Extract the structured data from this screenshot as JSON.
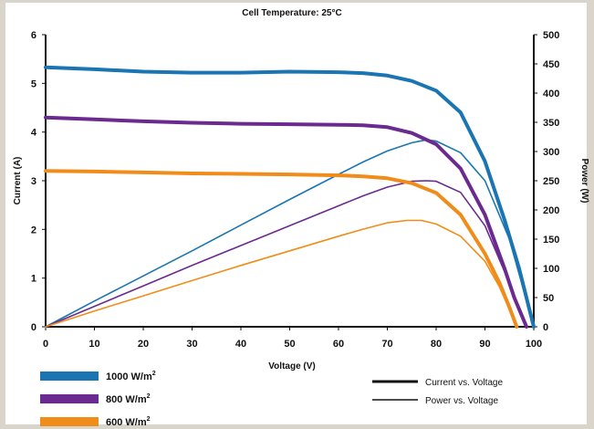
{
  "chart_data": {
    "type": "line",
    "title": "Cell Temperature: 25°C",
    "xlabel": "Voltage (V)",
    "ylabel": "Current (A)",
    "y2label": "Power (W)",
    "xlim": [
      0,
      100
    ],
    "ylim": [
      0,
      6
    ],
    "y2lim": [
      0,
      500
    ],
    "xticks": [
      "0",
      "10",
      "20",
      "30",
      "40",
      "50",
      "60",
      "70",
      "80",
      "90",
      "100"
    ],
    "yticks": [
      "0",
      "1",
      "2",
      "3",
      "4",
      "5",
      "6"
    ],
    "y2ticks": [
      "0",
      "50",
      "100",
      "150",
      "200",
      "250",
      "300",
      "350",
      "400",
      "450",
      "500"
    ],
    "grid": false,
    "legend": {
      "irradiance": [
        {
          "label": "1000 W/m",
          "sup": "2",
          "color": "#1a75b2"
        },
        {
          "label": "800 W/m",
          "sup": "2",
          "color": "#6a2a8f"
        },
        {
          "label": "600 W/m",
          "sup": "2",
          "color": "#f08c1a"
        }
      ],
      "styles": [
        {
          "label": "Current vs. Voltage",
          "style": "thick"
        },
        {
          "label": "Power vs. Voltage",
          "style": "thin"
        }
      ]
    },
    "series": [
      {
        "name": "1000 W/m² Current vs. Voltage",
        "axis": "left",
        "style": "thick",
        "color": "#1a75b2",
        "points": [
          [
            0,
            5.33
          ],
          [
            10,
            5.29
          ],
          [
            20,
            5.24
          ],
          [
            30,
            5.22
          ],
          [
            40,
            5.22
          ],
          [
            50,
            5.24
          ],
          [
            60,
            5.23
          ],
          [
            65,
            5.21
          ],
          [
            70,
            5.16
          ],
          [
            75,
            5.05
          ],
          [
            80,
            4.85
          ],
          [
            85,
            4.4
          ],
          [
            90,
            3.4
          ],
          [
            94,
            2.2
          ],
          [
            97,
            1.2
          ],
          [
            100,
            0
          ]
        ]
      },
      {
        "name": "800 W/m² Current vs. Voltage",
        "axis": "left",
        "style": "thick",
        "color": "#6a2a8f",
        "points": [
          [
            0,
            4.3
          ],
          [
            10,
            4.26
          ],
          [
            20,
            4.22
          ],
          [
            30,
            4.19
          ],
          [
            40,
            4.17
          ],
          [
            50,
            4.16
          ],
          [
            60,
            4.15
          ],
          [
            65,
            4.14
          ],
          [
            70,
            4.1
          ],
          [
            75,
            3.98
          ],
          [
            80,
            3.75
          ],
          [
            85,
            3.25
          ],
          [
            90,
            2.3
          ],
          [
            94,
            1.2
          ],
          [
            96,
            0.6
          ],
          [
            98.5,
            0
          ]
        ]
      },
      {
        "name": "600 W/m² Current vs. Voltage",
        "axis": "left",
        "style": "thick",
        "color": "#f08c1a",
        "points": [
          [
            0,
            3.2
          ],
          [
            10,
            3.19
          ],
          [
            20,
            3.17
          ],
          [
            30,
            3.15
          ],
          [
            40,
            3.14
          ],
          [
            50,
            3.13
          ],
          [
            60,
            3.11
          ],
          [
            65,
            3.09
          ],
          [
            70,
            3.05
          ],
          [
            75,
            2.95
          ],
          [
            80,
            2.75
          ],
          [
            85,
            2.3
          ],
          [
            90,
            1.5
          ],
          [
            93,
            0.9
          ],
          [
            95,
            0.4
          ],
          [
            96.5,
            0
          ]
        ]
      },
      {
        "name": "1000 W/m² Power vs. Voltage",
        "axis": "right",
        "style": "thin",
        "color": "#1a75b2",
        "points": [
          [
            0,
            0
          ],
          [
            10,
            44
          ],
          [
            20,
            87
          ],
          [
            30,
            130
          ],
          [
            40,
            174
          ],
          [
            50,
            218
          ],
          [
            60,
            261
          ],
          [
            65,
            282
          ],
          [
            70,
            301
          ],
          [
            75,
            315
          ],
          [
            78,
            320
          ],
          [
            80,
            318
          ],
          [
            85,
            298
          ],
          [
            90,
            250
          ],
          [
            95,
            150
          ],
          [
            100,
            0
          ]
        ]
      },
      {
        "name": "800 W/m² Power vs. Voltage",
        "axis": "right",
        "style": "thin",
        "color": "#6a2a8f",
        "points": [
          [
            0,
            0
          ],
          [
            10,
            35
          ],
          [
            20,
            70
          ],
          [
            30,
            105
          ],
          [
            40,
            139
          ],
          [
            50,
            173
          ],
          [
            60,
            207
          ],
          [
            65,
            224
          ],
          [
            70,
            239
          ],
          [
            75,
            249
          ],
          [
            78,
            250
          ],
          [
            80,
            249
          ],
          [
            85,
            230
          ],
          [
            90,
            173
          ],
          [
            95,
            75
          ],
          [
            98.5,
            0
          ]
        ]
      },
      {
        "name": "600 W/m² Power vs. Voltage",
        "axis": "right",
        "style": "thin",
        "color": "#f08c1a",
        "points": [
          [
            0,
            0
          ],
          [
            10,
            27
          ],
          [
            20,
            53
          ],
          [
            30,
            79
          ],
          [
            40,
            105
          ],
          [
            50,
            130
          ],
          [
            60,
            155
          ],
          [
            65,
            167
          ],
          [
            70,
            178
          ],
          [
            74,
            182
          ],
          [
            77,
            182
          ],
          [
            80,
            176
          ],
          [
            85,
            155
          ],
          [
            90,
            112
          ],
          [
            93,
            68
          ],
          [
            95,
            30
          ],
          [
            96.5,
            0
          ]
        ]
      }
    ]
  }
}
